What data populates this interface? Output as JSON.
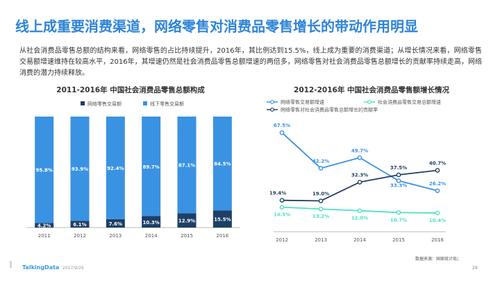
{
  "page": {
    "title": "线上成重要消费渠道，网络零售对消费品零售增长的带动作用明显",
    "intro": "从社会消费品零售总额的结构来看，网络零售的占比持续提升，2016年，其比例达到15.5%，线上成为重要的消费渠道；从增长情况来看，网络零售交易额增速维持在较高水平，2016年，其增速仍然是社会消费品零售总额增速的两倍多，网络零售对社会消费品零售总额增长的贡献率持续走高，网络消费的潜力持续释放。",
    "footer": {
      "logo": "TalkingData",
      "date": "2017/9/26",
      "source": "数据来源：国家统计局；",
      "page_number": "29"
    }
  },
  "colors": {
    "title": "#2e84d8",
    "online_bar": "#1e3f66",
    "offline_bar": "#3a92e2",
    "line_online_growth": "#3a92e2",
    "line_total_growth": "#4fe0c6",
    "line_contribution": "#1e3f66"
  },
  "chart_data": [
    {
      "type": "bar",
      "stacked": true,
      "title": "2011-2016年 中国社会消费品零售总额构成",
      "categories": [
        "2011",
        "2012",
        "2013",
        "2014",
        "2015",
        "2016"
      ],
      "series": [
        {
          "name": "网络零售交易额",
          "values": [
            4.2,
            6.1,
            7.6,
            10.3,
            12.9,
            15.5
          ],
          "labels": [
            "4.2%",
            "6.1%",
            "7.6%",
            "10.3%",
            "12.9%",
            "15.5%"
          ]
        },
        {
          "name": "线下零售交易额",
          "values": [
            95.8,
            93.9,
            92.4,
            89.7,
            87.1,
            84.5
          ],
          "labels": [
            "95.8%",
            "93.9%",
            "92.4%",
            "89.7%",
            "87.1%",
            "84.5%"
          ]
        }
      ],
      "ylim": [
        0,
        100
      ],
      "legend": "top-left",
      "grid": false
    },
    {
      "type": "line",
      "title": "2012-2016年 中国社会消费品零售额增长情况",
      "categories": [
        "2012",
        "2013",
        "2014",
        "2015",
        "2016"
      ],
      "series": [
        {
          "name": "网络零售交易额增速",
          "values": [
            67.5,
            42.2,
            49.7,
            33.3,
            26.2
          ],
          "labels": [
            "67.5%",
            "42.2%",
            "49.7%",
            "33.3%",
            "26.2%"
          ]
        },
        {
          "name": "社会消费品零售交易总额增速",
          "values": [
            14.5,
            13.2,
            12.0,
            10.7,
            10.4
          ],
          "labels": [
            "14.5%",
            "13.2%",
            "12.0%",
            "10.7%",
            "10.4%"
          ]
        },
        {
          "name": "网络零售对社会消费品零售总额增长的贡献率",
          "values": [
            19.4,
            19.0,
            32.3,
            37.5,
            40.7
          ],
          "labels": [
            "19.4%",
            "19.0%",
            "32.3%",
            "37.5%",
            "40.7%"
          ]
        }
      ],
      "ylim": [
        0,
        75
      ],
      "legend": "top-left",
      "grid": false
    }
  ]
}
